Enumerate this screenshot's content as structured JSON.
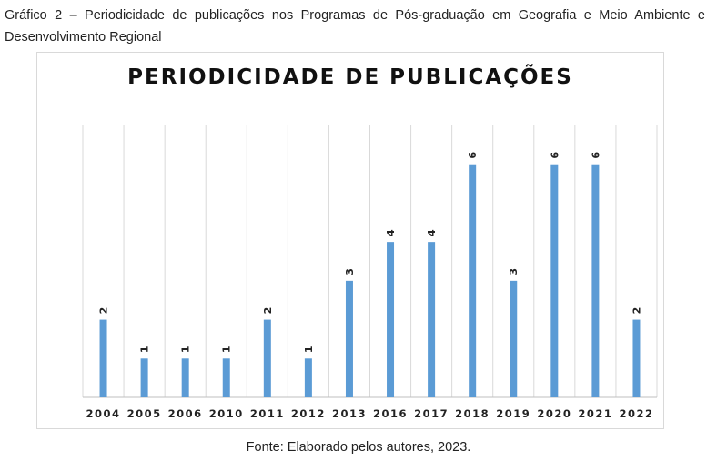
{
  "caption": "Gráfico 2 – Periodicidade de publicações nos Programas de Pós-graduação em Geografia e Meio Ambiente e Desenvolvimento Regional",
  "source": "Fonte: Elaborado pelos autores, 2023.",
  "colors": {
    "bar": "#5b9bd5",
    "grid": "#d9d9d9",
    "axis": "#bfbfbf"
  },
  "chart_data": {
    "type": "bar",
    "title": "PERIODICIDADE DE PUBLICAÇÕES",
    "categories": [
      "2004",
      "2005",
      "2006",
      "2010",
      "2011",
      "2012",
      "2013",
      "2016",
      "2017",
      "2018",
      "2019",
      "2020",
      "2021",
      "2022"
    ],
    "values": [
      2,
      1,
      1,
      1,
      2,
      1,
      3,
      4,
      4,
      6,
      3,
      6,
      6,
      2
    ],
    "ylim": [
      0,
      7
    ],
    "data_labels": true,
    "grid": "vertical",
    "legend": "none"
  }
}
